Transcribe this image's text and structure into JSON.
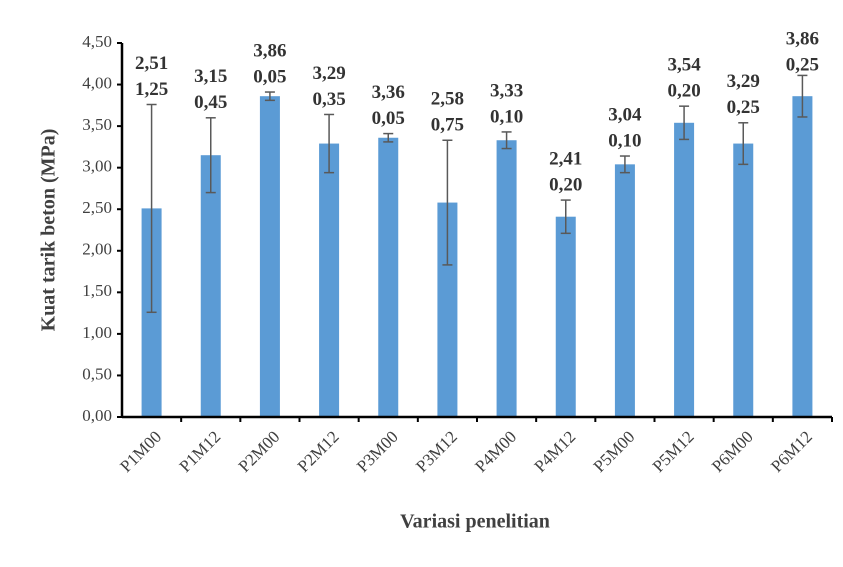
{
  "chart_data": {
    "type": "bar",
    "x_label": "Variasi penelitian",
    "y_label": "Kuat tarik beton (MPa)",
    "categories": [
      "P1M00",
      "P1M12",
      "P2M00",
      "P2M12",
      "P3M00",
      "P3M12",
      "P4M00",
      "P4M12",
      "P5M00",
      "P5M12",
      "P6M00",
      "P6M12"
    ],
    "values": [
      2.51,
      3.15,
      3.86,
      3.29,
      3.36,
      2.58,
      3.33,
      2.41,
      3.04,
      3.54,
      3.29,
      3.86
    ],
    "value_labels": [
      "2,51",
      "3,15",
      "3,86",
      "3,29",
      "3,36",
      "2,58",
      "3,33",
      "2,41",
      "3,04",
      "3,54",
      "3,29",
      "3,86"
    ],
    "errors": [
      1.25,
      0.45,
      0.05,
      0.35,
      0.05,
      0.75,
      0.1,
      0.2,
      0.1,
      0.2,
      0.25,
      0.25
    ],
    "error_labels": [
      "1,25",
      "0,45",
      "0,05",
      "0,35",
      "0,05",
      "0,75",
      "0,10",
      "0,20",
      "0,10",
      "0,20",
      "0,25",
      "0,25"
    ],
    "color": "#5b9bd5",
    "error_color": "#595959",
    "ylim": [
      0,
      4.5
    ],
    "yticks": [
      {
        "value": 0,
        "label": "0,00"
      },
      {
        "value": 0.5,
        "label": "0,50"
      },
      {
        "value": 1,
        "label": "1,00"
      },
      {
        "value": 1.5,
        "label": "1,50"
      },
      {
        "value": 2,
        "label": "2,00"
      },
      {
        "value": 2.5,
        "label": "2,50"
      },
      {
        "value": 3,
        "label": "3,00"
      },
      {
        "value": 3.5,
        "label": "3,50"
      },
      {
        "value": 4,
        "label": "4,00"
      },
      {
        "value": 4.5,
        "label": "4,50"
      }
    ],
    "grid": false
  }
}
